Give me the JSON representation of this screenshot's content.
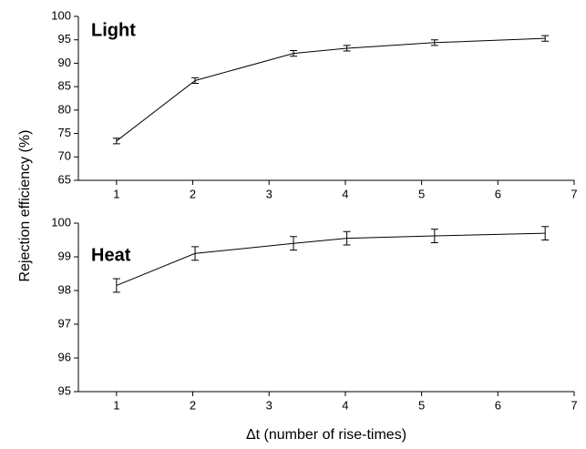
{
  "chart_data": [
    {
      "type": "line",
      "annotation": "Light",
      "ylabel": "Rejection efficiency (%)",
      "x": [
        1,
        2.03,
        3.32,
        4.02,
        5.17,
        6.62
      ],
      "series": [
        {
          "color": "#000000",
          "values": [
            73.4,
            86.3,
            92.1,
            93.2,
            94.4,
            95.3
          ],
          "errors": [
            0.6,
            0.6,
            0.6,
            0.6,
            0.6,
            0.6
          ]
        }
      ],
      "xlim": [
        0.5,
        7
      ],
      "xticks": [
        1,
        2,
        3,
        4,
        5,
        6,
        7
      ],
      "ylim": [
        65,
        100
      ],
      "yticks": [
        65,
        70,
        75,
        80,
        85,
        90,
        95,
        100
      ]
    },
    {
      "type": "line",
      "annotation": "Heat",
      "xlabel": "Δt (number of rise-times)",
      "x": [
        1,
        2.03,
        3.32,
        4.02,
        5.17,
        6.62
      ],
      "series": [
        {
          "color": "#000000",
          "values": [
            98.15,
            99.1,
            99.4,
            99.55,
            99.62,
            99.7
          ],
          "errors": [
            0.2,
            0.2,
            0.2,
            0.2,
            0.2,
            0.2
          ]
        }
      ],
      "xlim": [
        0.5,
        7
      ],
      "xticks": [
        1,
        2,
        3,
        4,
        5,
        6,
        7
      ],
      "ylim": [
        95,
        100
      ],
      "yticks": [
        95,
        96,
        97,
        98,
        99,
        100
      ]
    }
  ]
}
